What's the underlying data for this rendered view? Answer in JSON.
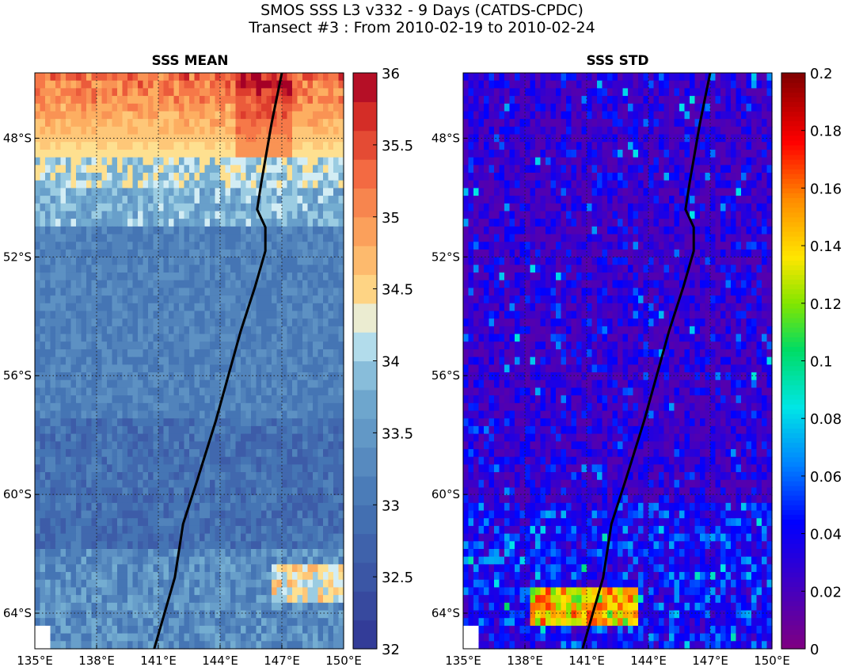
{
  "figure": {
    "title_line1": "SMOS SSS L3 v332 - 9 Days (CATDS-CPDC)",
    "title_line2": "Transect #3 : From 2010-02-19 to 2010-02-24"
  },
  "panels": [
    {
      "title": "SSS MEAN",
      "variable": "sea surface salinity mean",
      "colormap": "diverging blue-yellow-red (RdYlBu reversed)",
      "colorbar": {
        "min": 32,
        "max": 36,
        "ticks": [
          "32",
          "32.5",
          "33",
          "33.5",
          "34",
          "34.5",
          "35",
          "35.5",
          "36"
        ],
        "discrete_levels": 20
      }
    },
    {
      "title": "SSS STD",
      "variable": "sea surface salinity standard deviation",
      "colormap": "jet-like purple-blue-green-yellow-red",
      "colorbar": {
        "min": 0,
        "max": 0.2,
        "ticks": [
          "0",
          "0.02",
          "0.04",
          "0.06",
          "0.08",
          "0.1",
          "0.12",
          "0.14",
          "0.16",
          "0.18",
          "0.2"
        ]
      }
    }
  ],
  "map": {
    "lon_range": [
      135,
      150
    ],
    "lat_range": [
      -65.2,
      -45.8
    ],
    "x_ticks": [
      "135°E",
      "138°E",
      "141°E",
      "144°E",
      "147°E",
      "150°E"
    ],
    "y_ticks": [
      "48°S",
      "52°S",
      "56°S",
      "60°S",
      "64°S"
    ],
    "gridlines": "dotted",
    "transect_color": "#000000",
    "transect_lonlat": [
      [
        147.0,
        -45.8
      ],
      [
        146.5,
        -47.5
      ],
      [
        146.0,
        -49.5
      ],
      [
        145.8,
        -50.4
      ],
      [
        146.2,
        -51.0
      ],
      [
        146.2,
        -51.8
      ],
      [
        145.7,
        -53.0
      ],
      [
        145.0,
        -54.5
      ],
      [
        143.8,
        -57.5
      ],
      [
        142.9,
        -59.5
      ],
      [
        142.2,
        -61.0
      ],
      [
        141.8,
        -62.8
      ],
      [
        140.8,
        -65.2
      ]
    ]
  }
}
